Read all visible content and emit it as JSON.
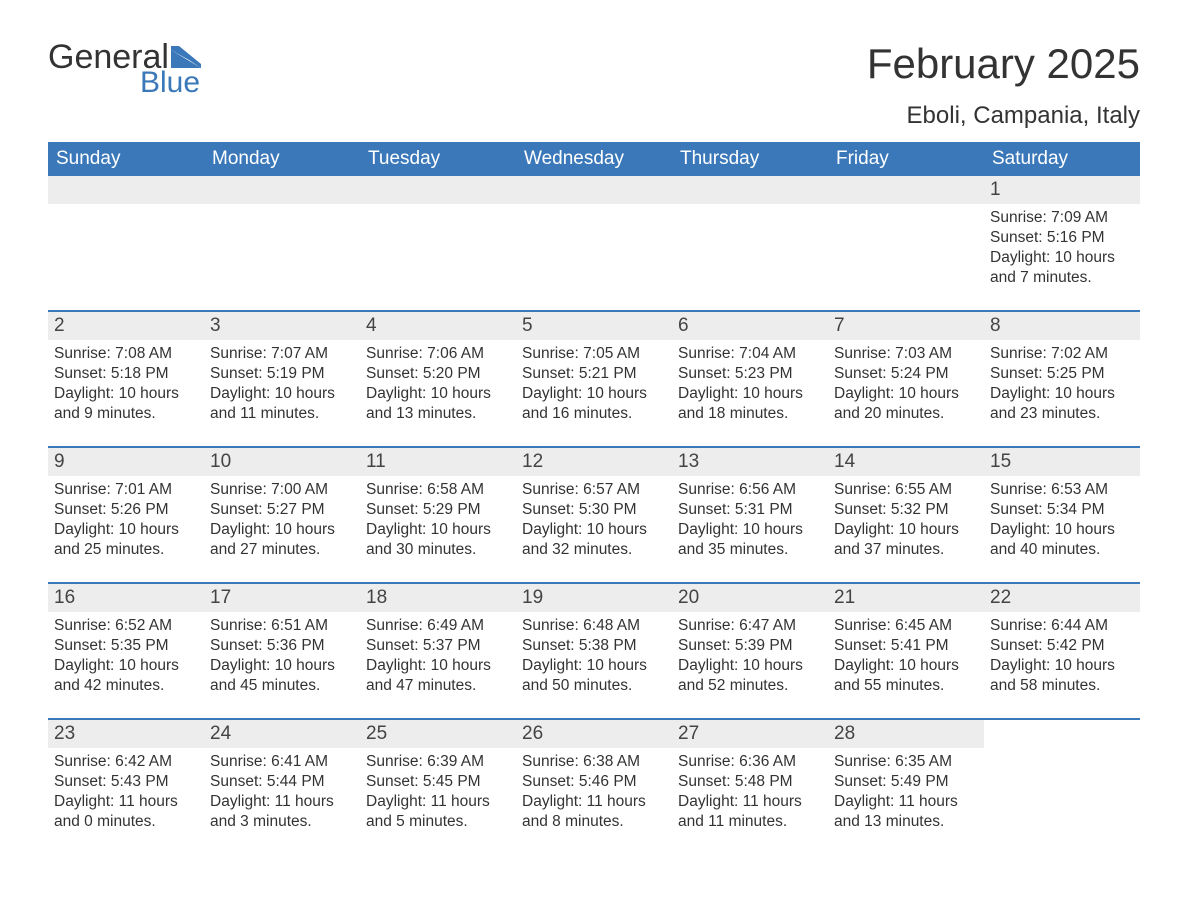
{
  "logo": {
    "text1": "General",
    "text2": "Blue"
  },
  "header": {
    "title": "February 2025",
    "location": "Eboli, Campania, Italy"
  },
  "colors": {
    "brand_blue": "#3a78b9",
    "header_bg": "#3a78b9",
    "header_text": "#ffffff",
    "daynum_bg": "#ededed",
    "body_text": "#333333",
    "background": "#ffffff"
  },
  "typography": {
    "title_fontsize": 42,
    "location_fontsize": 24,
    "day_header_fontsize": 19,
    "daynum_fontsize": 19,
    "body_fontsize": 15.5,
    "font_family": "Arial"
  },
  "day_names": [
    "Sunday",
    "Monday",
    "Tuesday",
    "Wednesday",
    "Thursday",
    "Friday",
    "Saturday"
  ],
  "weeks": [
    [
      {
        "day": "",
        "sunrise": "",
        "sunset": "",
        "daylight": ""
      },
      {
        "day": "",
        "sunrise": "",
        "sunset": "",
        "daylight": ""
      },
      {
        "day": "",
        "sunrise": "",
        "sunset": "",
        "daylight": ""
      },
      {
        "day": "",
        "sunrise": "",
        "sunset": "",
        "daylight": ""
      },
      {
        "day": "",
        "sunrise": "",
        "sunset": "",
        "daylight": ""
      },
      {
        "day": "",
        "sunrise": "",
        "sunset": "",
        "daylight": ""
      },
      {
        "day": "1",
        "sunrise": "Sunrise: 7:09 AM",
        "sunset": "Sunset: 5:16 PM",
        "daylight": "Daylight: 10 hours and 7 minutes."
      }
    ],
    [
      {
        "day": "2",
        "sunrise": "Sunrise: 7:08 AM",
        "sunset": "Sunset: 5:18 PM",
        "daylight": "Daylight: 10 hours and 9 minutes."
      },
      {
        "day": "3",
        "sunrise": "Sunrise: 7:07 AM",
        "sunset": "Sunset: 5:19 PM",
        "daylight": "Daylight: 10 hours and 11 minutes."
      },
      {
        "day": "4",
        "sunrise": "Sunrise: 7:06 AM",
        "sunset": "Sunset: 5:20 PM",
        "daylight": "Daylight: 10 hours and 13 minutes."
      },
      {
        "day": "5",
        "sunrise": "Sunrise: 7:05 AM",
        "sunset": "Sunset: 5:21 PM",
        "daylight": "Daylight: 10 hours and 16 minutes."
      },
      {
        "day": "6",
        "sunrise": "Sunrise: 7:04 AM",
        "sunset": "Sunset: 5:23 PM",
        "daylight": "Daylight: 10 hours and 18 minutes."
      },
      {
        "day": "7",
        "sunrise": "Sunrise: 7:03 AM",
        "sunset": "Sunset: 5:24 PM",
        "daylight": "Daylight: 10 hours and 20 minutes."
      },
      {
        "day": "8",
        "sunrise": "Sunrise: 7:02 AM",
        "sunset": "Sunset: 5:25 PM",
        "daylight": "Daylight: 10 hours and 23 minutes."
      }
    ],
    [
      {
        "day": "9",
        "sunrise": "Sunrise: 7:01 AM",
        "sunset": "Sunset: 5:26 PM",
        "daylight": "Daylight: 10 hours and 25 minutes."
      },
      {
        "day": "10",
        "sunrise": "Sunrise: 7:00 AM",
        "sunset": "Sunset: 5:27 PM",
        "daylight": "Daylight: 10 hours and 27 minutes."
      },
      {
        "day": "11",
        "sunrise": "Sunrise: 6:58 AM",
        "sunset": "Sunset: 5:29 PM",
        "daylight": "Daylight: 10 hours and 30 minutes."
      },
      {
        "day": "12",
        "sunrise": "Sunrise: 6:57 AM",
        "sunset": "Sunset: 5:30 PM",
        "daylight": "Daylight: 10 hours and 32 minutes."
      },
      {
        "day": "13",
        "sunrise": "Sunrise: 6:56 AM",
        "sunset": "Sunset: 5:31 PM",
        "daylight": "Daylight: 10 hours and 35 minutes."
      },
      {
        "day": "14",
        "sunrise": "Sunrise: 6:55 AM",
        "sunset": "Sunset: 5:32 PM",
        "daylight": "Daylight: 10 hours and 37 minutes."
      },
      {
        "day": "15",
        "sunrise": "Sunrise: 6:53 AM",
        "sunset": "Sunset: 5:34 PM",
        "daylight": "Daylight: 10 hours and 40 minutes."
      }
    ],
    [
      {
        "day": "16",
        "sunrise": "Sunrise: 6:52 AM",
        "sunset": "Sunset: 5:35 PM",
        "daylight": "Daylight: 10 hours and 42 minutes."
      },
      {
        "day": "17",
        "sunrise": "Sunrise: 6:51 AM",
        "sunset": "Sunset: 5:36 PM",
        "daylight": "Daylight: 10 hours and 45 minutes."
      },
      {
        "day": "18",
        "sunrise": "Sunrise: 6:49 AM",
        "sunset": "Sunset: 5:37 PM",
        "daylight": "Daylight: 10 hours and 47 minutes."
      },
      {
        "day": "19",
        "sunrise": "Sunrise: 6:48 AM",
        "sunset": "Sunset: 5:38 PM",
        "daylight": "Daylight: 10 hours and 50 minutes."
      },
      {
        "day": "20",
        "sunrise": "Sunrise: 6:47 AM",
        "sunset": "Sunset: 5:39 PM",
        "daylight": "Daylight: 10 hours and 52 minutes."
      },
      {
        "day": "21",
        "sunrise": "Sunrise: 6:45 AM",
        "sunset": "Sunset: 5:41 PM",
        "daylight": "Daylight: 10 hours and 55 minutes."
      },
      {
        "day": "22",
        "sunrise": "Sunrise: 6:44 AM",
        "sunset": "Sunset: 5:42 PM",
        "daylight": "Daylight: 10 hours and 58 minutes."
      }
    ],
    [
      {
        "day": "23",
        "sunrise": "Sunrise: 6:42 AM",
        "sunset": "Sunset: 5:43 PM",
        "daylight": "Daylight: 11 hours and 0 minutes."
      },
      {
        "day": "24",
        "sunrise": "Sunrise: 6:41 AM",
        "sunset": "Sunset: 5:44 PM",
        "daylight": "Daylight: 11 hours and 3 minutes."
      },
      {
        "day": "25",
        "sunrise": "Sunrise: 6:39 AM",
        "sunset": "Sunset: 5:45 PM",
        "daylight": "Daylight: 11 hours and 5 minutes."
      },
      {
        "day": "26",
        "sunrise": "Sunrise: 6:38 AM",
        "sunset": "Sunset: 5:46 PM",
        "daylight": "Daylight: 11 hours and 8 minutes."
      },
      {
        "day": "27",
        "sunrise": "Sunrise: 6:36 AM",
        "sunset": "Sunset: 5:48 PM",
        "daylight": "Daylight: 11 hours and 11 minutes."
      },
      {
        "day": "28",
        "sunrise": "Sunrise: 6:35 AM",
        "sunset": "Sunset: 5:49 PM",
        "daylight": "Daylight: 11 hours and 13 minutes."
      },
      {
        "day": "",
        "sunrise": "",
        "sunset": "",
        "daylight": ""
      }
    ]
  ]
}
